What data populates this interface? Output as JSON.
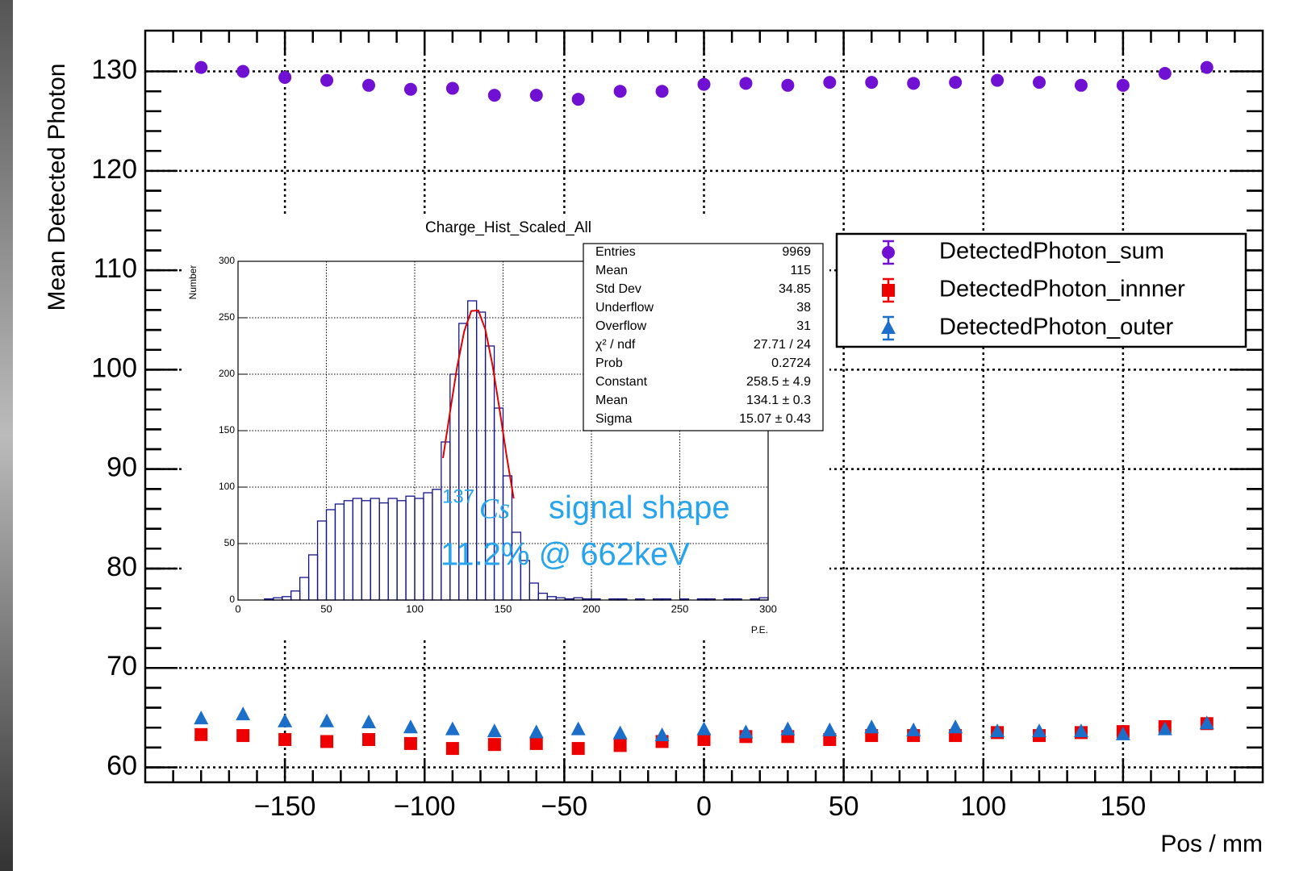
{
  "chart_data": [
    {
      "type": "scatter",
      "ylabel": "Mean Detected Photon",
      "xlabel": "Pos / mm",
      "xlim": [
        -200,
        200
      ],
      "ylim": [
        58.5,
        134.1
      ],
      "grid": true,
      "legend": "right",
      "xticks": [
        {
          "value": -150,
          "label": "−150"
        },
        {
          "value": -100,
          "label": "−100"
        },
        {
          "value": -50,
          "label": "−50"
        },
        0,
        50,
        100,
        150
      ],
      "yticks": [
        60,
        70,
        80,
        90,
        100,
        110,
        120,
        130
      ],
      "x": [
        -180,
        -165,
        -150,
        -135,
        -120,
        -105,
        -90,
        -75,
        -60,
        -45,
        -30,
        -15,
        0,
        15,
        30,
        45,
        60,
        75,
        90,
        105,
        120,
        135,
        150,
        165,
        180
      ],
      "series": [
        {
          "name": "DetectedPhoton_sum",
          "color": "#6f10d2",
          "marker": "circle",
          "values": [
            130.4,
            130,
            129.4,
            129.1,
            128.6,
            128.2,
            128.3,
            127.6,
            127.6,
            127.2,
            128,
            128,
            128.7,
            128.8,
            128.6,
            128.9,
            128.9,
            128.8,
            128.9,
            129.1,
            128.9,
            128.6,
            128.6,
            129.8,
            130.4
          ]
        },
        {
          "name": "DetectedPhoton_innner",
          "color": "#ee0000",
          "marker": "square",
          "values": [
            63.3,
            63.2,
            62.8,
            62.6,
            62.8,
            62.4,
            61.9,
            62.3,
            62.4,
            61.9,
            62.2,
            62.6,
            62.8,
            63.1,
            63.1,
            62.8,
            63.2,
            63.2,
            63.2,
            63.5,
            63.2,
            63.5,
            63.6,
            64.1,
            64.4
          ]
        },
        {
          "name": "DetectedPhoton_outer",
          "color": "#1b6fc9",
          "marker": "triangle",
          "values": [
            64.9,
            65.3,
            64.6,
            64.6,
            64.5,
            64,
            63.8,
            63.6,
            63.5,
            63.8,
            63.4,
            63.2,
            63.8,
            63.5,
            63.8,
            63.7,
            64,
            63.7,
            64,
            63.6,
            63.6,
            63.6,
            63.3,
            63.8,
            64.4
          ]
        }
      ]
    },
    {
      "type": "histogram",
      "title": "Charge_Hist_Scaled_All",
      "ylabel": "Number",
      "xlabel": "P.E.",
      "xlim": [
        0,
        300
      ],
      "ylim": [
        0,
        300
      ],
      "grid": true,
      "color": "#14148c",
      "xticks": [
        0,
        50,
        100,
        150,
        200,
        250,
        300
      ],
      "yticks": [
        0,
        50,
        100,
        150,
        200,
        250,
        300
      ],
      "bins": [
        0,
        5,
        10,
        15,
        20,
        25,
        30,
        35,
        40,
        45,
        50,
        55,
        60,
        65,
        70,
        75,
        80,
        85,
        90,
        95,
        100,
        105,
        110,
        115,
        120,
        125,
        130,
        135,
        140,
        145,
        150,
        155,
        160,
        165,
        170,
        175,
        180,
        185,
        190,
        195,
        200,
        205,
        210,
        215,
        220,
        225,
        230,
        235,
        240,
        245,
        250,
        255,
        260,
        265,
        270,
        275,
        280,
        285,
        290,
        295,
        300
      ],
      "values": [
        0,
        0,
        0,
        1,
        2,
        3,
        8,
        20,
        40,
        70,
        80,
        85,
        88,
        90,
        88,
        90,
        86,
        90,
        88,
        92,
        90,
        95,
        98,
        140,
        200,
        245,
        265,
        255,
        225,
        170,
        110,
        60,
        35,
        15,
        6,
        3,
        2,
        1,
        2,
        1,
        1,
        0,
        1,
        1,
        0,
        1,
        0,
        1,
        1,
        0,
        1,
        0,
        1,
        1,
        0,
        1,
        1,
        0,
        1,
        2
      ],
      "fit": {
        "color": "#e00000",
        "x": [
          116,
          120,
          124,
          128,
          132,
          136,
          140,
          144,
          148,
          152,
          156
        ],
        "values": [
          125.7,
          166.8,
          206.5,
          238,
          256,
          256.5,
          239.4,
          208.3,
          169,
          127.7,
          89.9
        ]
      },
      "stats": [
        {
          "label": "Entries",
          "value": "9969"
        },
        {
          "label": "Mean",
          "value": "115"
        },
        {
          "label": "Std Dev",
          "value": "34.85"
        },
        {
          "label": "Underflow",
          "value": "38"
        },
        {
          "label": "Overflow",
          "value": "31"
        },
        {
          "label": "χ² / ndf",
          "value": "27.71 / 24"
        },
        {
          "label": "Prob",
          "value": "0.2724"
        },
        {
          "label": "Constant",
          "value": "258.5 ± 4.9"
        },
        {
          "label": "Mean",
          "value": "134.1 ± 0.3"
        },
        {
          "label": "Sigma",
          "value": "15.07 ± 0.43"
        }
      ],
      "annotation": {
        "mass": "137",
        "isotope": "Cs",
        "text": "signal shape",
        "resolution": "11.2% @ 662keV"
      }
    }
  ]
}
